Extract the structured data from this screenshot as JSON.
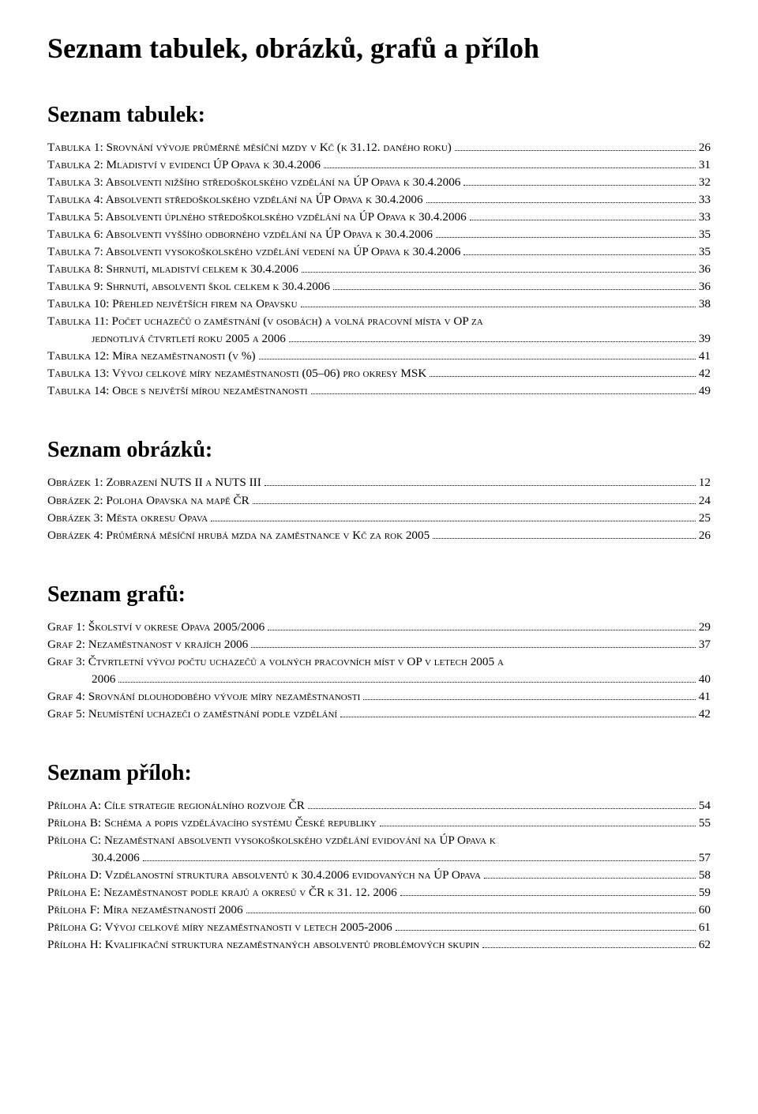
{
  "title": "Seznam tabulek, obrázků, grafů a příloh",
  "sections": [
    {
      "heading": "Seznam tabulek:",
      "items": [
        {
          "label": "Tabulka 1: Srovnání vývoje průměrné měsíční mzdy v Kč (k 31.12. daného roku)",
          "page": "26"
        },
        {
          "label": "Tabulka 2: Mladiství v evidenci ÚP Opava k 30.4.2006",
          "page": "31"
        },
        {
          "label": "Tabulka 3: Absolventi nižšího středoškolského vzdělání na ÚP Opava k 30.4.2006",
          "page": "32"
        },
        {
          "label": "Tabulka 4: Absolventi středoškolského vzdělání na ÚP Opava k 30.4.2006",
          "page": "33"
        },
        {
          "label": "Tabulka 5: Absolventi úplného středoškolského vzdělání na ÚP Opava k 30.4.2006",
          "page": "33"
        },
        {
          "label": "Tabulka 6: Absolventi vyššího odborného vzdělání na ÚP Opava k 30.4.2006",
          "page": "35"
        },
        {
          "label": "Tabulka 7: Absolventi vysokoškolského vzdělání vedení na ÚP Opava k 30.4.2006",
          "page": "35"
        },
        {
          "label": "Tabulka 8: Shrnutí, mladiství celkem k 30.4.2006",
          "page": "36"
        },
        {
          "label": "Tabulka 9: Shrnutí, absolventi škol celkem k 30.4.2006",
          "page": "36"
        },
        {
          "label": "Tabulka 10: Přehled největších firem na Opavsku",
          "page": "38"
        },
        {
          "label": "Tabulka 11: Počet uchazečů o zaměstnání (v osobách) a volná pracovní místa v OP za",
          "cont": "jednotlivá čtvrtletí roku 2005  a 2006",
          "page": "39"
        },
        {
          "label": "Tabulka 12: Míra nezaměstnanosti (v %)",
          "page": "41"
        },
        {
          "label": "Tabulka 13: Vývoj celkové míry nezaměstnanosti (05–06) pro okresy MSK",
          "page": "42"
        },
        {
          "label": "Tabulka 14: Obce s největší mírou nezaměstnanosti",
          "page": "49"
        }
      ]
    },
    {
      "heading": "Seznam obrázků:",
      "items": [
        {
          "label": "Obrázek 1: Zobrazení NUTS II a NUTS III",
          "page": "12"
        },
        {
          "label": "Obrázek 2: Poloha Opavska na mapě ČR",
          "page": "24"
        },
        {
          "label": "Obrázek 3: Města okresu Opava",
          "page": "25"
        },
        {
          "label": "Obrázek 4: Průměrná měsíční hrubá mzda na zaměstnance v Kč za rok 2005",
          "page": "26"
        }
      ]
    },
    {
      "heading": "Seznam grafů:",
      "items": [
        {
          "label": "Graf 1: Školství v okrese Opava 2005/2006",
          "page": "29"
        },
        {
          "label": "Graf 2: Nezaměstnanost v krajích 2006",
          "page": "37"
        },
        {
          "label": "Graf 3: Čtvrtletní vývoj počtu uchazečů a volných pracovních míst v OP v letech 2005 a",
          "cont": "2006",
          "page": "40"
        },
        {
          "label": "Graf 4:  Srovnání dlouhodobého vývoje míry nezaměstnanosti",
          "page": "41"
        },
        {
          "label": "Graf 5: Neumístění uchazeči o zaměstnání podle vzdělání",
          "page": "42"
        }
      ]
    },
    {
      "heading": "Seznam příloh:",
      "items": [
        {
          "label": "Příloha A: Cíle strategie regionálního rozvoje ČR",
          "page": "54"
        },
        {
          "label": "Příloha B: Schéma a popis vzdělávacího systému České republiky",
          "page": "55"
        },
        {
          "label": "Příloha C: Nezaměstnaní absolventi vysokoškolského vzdělání evidování na ÚP Opava k",
          "cont": "30.4.2006",
          "page": "57"
        },
        {
          "label": "Příloha D: Vzdělanostní struktura absolventů k 30.4.2006 evidovaných na ÚP Opava",
          "page": "58"
        },
        {
          "label": "Příloha E: Nezaměstnanost podle krajů a okresů v ČR k 31. 12. 2006",
          "page": "59"
        },
        {
          "label": "Příloha F: Míra nezaměstnaností 2006",
          "page": "60"
        },
        {
          "label": "Příloha G: Vývoj celkové míry nezaměstnanosti v letech 2005-2006",
          "page": "61"
        },
        {
          "label": "Příloha H: Kvalifikační struktura nezaměstnaných absolventů problémových skupin",
          "page": "62"
        }
      ]
    }
  ]
}
